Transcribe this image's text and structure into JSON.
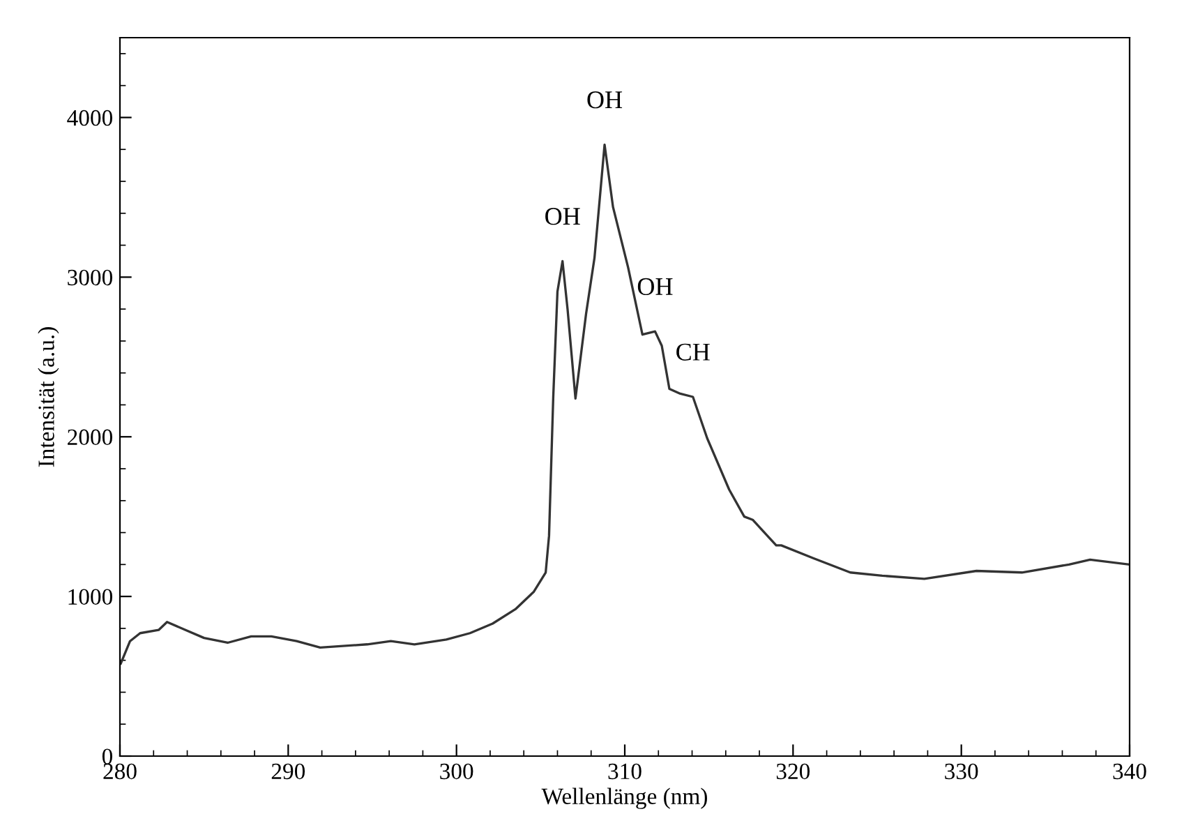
{
  "chart_data": {
    "type": "line",
    "xlabel": "Wellenlänge (nm)",
    "ylabel": "Intensität (a.u.)",
    "xlim": [
      280,
      340
    ],
    "ylim": [
      0,
      4500
    ],
    "xticks": [
      280,
      {
        "value": 282,
        "label": null
      },
      {
        "value": 284,
        "label": null
      },
      {
        "value": 286,
        "label": null
      },
      {
        "value": 288,
        "label": null
      },
      290,
      {
        "value": 292,
        "label": null
      },
      {
        "value": 294,
        "label": null
      },
      {
        "value": 296,
        "label": null
      },
      {
        "value": 298,
        "label": null
      },
      300,
      {
        "value": 302,
        "label": null
      },
      {
        "value": 304,
        "label": null
      },
      {
        "value": 306,
        "label": null
      },
      {
        "value": 308,
        "label": null
      },
      310,
      {
        "value": 312,
        "label": null
      },
      {
        "value": 314,
        "label": null
      },
      {
        "value": 316,
        "label": null
      },
      {
        "value": 318,
        "label": null
      },
      320,
      {
        "value": 322,
        "label": null
      },
      {
        "value": 324,
        "label": null
      },
      {
        "value": 326,
        "label": null
      },
      {
        "value": 328,
        "label": null
      },
      330,
      {
        "value": 332,
        "label": null
      },
      {
        "value": 334,
        "label": null
      },
      {
        "value": 336,
        "label": null
      },
      {
        "value": 338,
        "label": null
      },
      340
    ],
    "yticks": [
      0,
      {
        "value": 200,
        "label": null
      },
      {
        "value": 400,
        "label": null
      },
      {
        "value": 600,
        "label": null
      },
      {
        "value": 800,
        "label": null
      },
      1000,
      {
        "value": 1200,
        "label": null
      },
      {
        "value": 1400,
        "label": null
      },
      {
        "value": 1600,
        "label": null
      },
      {
        "value": 1800,
        "label": null
      },
      2000,
      {
        "value": 2200,
        "label": null
      },
      {
        "value": 2400,
        "label": null
      },
      {
        "value": 2600,
        "label": null
      },
      {
        "value": 2800,
        "label": null
      },
      3000,
      {
        "value": 3200,
        "label": null
      },
      {
        "value": 3400,
        "label": null
      },
      {
        "value": 3600,
        "label": null
      },
      {
        "value": 3800,
        "label": null
      },
      4000,
      {
        "value": 4200,
        "label": null
      },
      {
        "value": 4400,
        "label": null
      }
    ],
    "grid": false,
    "legend": false,
    "marker": "none",
    "line_style": "solid",
    "series": [
      {
        "color": "#333333",
        "x": [
          280.05,
          280.6,
          281.2,
          282.3,
          282.8,
          283.9,
          285.0,
          286.4,
          287.8,
          289.0,
          290.5,
          291.9,
          294.7,
          296.1,
          297.5,
          299.4,
          300.8,
          302.15,
          303.5,
          304.6,
          305.3,
          305.5,
          305.75,
          306.0,
          306.3,
          306.6,
          307.07,
          307.7,
          308.2,
          308.8,
          309.3,
          310.2,
          311.05,
          311.8,
          312.2,
          312.65,
          313.3,
          314.05,
          314.9,
          316.2,
          317.1,
          317.6,
          319.0,
          319.3,
          321.2,
          323.4,
          325.3,
          327.8,
          330.9,
          333.6,
          336.4,
          337.65,
          340
        ],
        "values": [
          580,
          720,
          770,
          790,
          840,
          790,
          740,
          710,
          750,
          750,
          720,
          680,
          700,
          720,
          700,
          730,
          770,
          830,
          920,
          1030,
          1150,
          1380,
          2250,
          2910,
          3100,
          2800,
          2240,
          2770,
          3120,
          3830,
          3440,
          3060,
          2640,
          2660,
          2570,
          2300,
          2270,
          2250,
          1990,
          1670,
          1500,
          1480,
          1320,
          1320,
          1240,
          1150,
          1130,
          1110,
          1160,
          1150,
          1200,
          1230,
          1200
        ]
      }
    ],
    "annotations": [
      {
        "text": "OH",
        "x": 306.3,
        "y": 3100
      },
      {
        "text": "OH",
        "x": 308.8,
        "y": 3830
      },
      {
        "text": "OH",
        "x": 311.8,
        "y": 2660
      },
      {
        "text": "CH",
        "x": 314.05,
        "y": 2250
      }
    ]
  }
}
